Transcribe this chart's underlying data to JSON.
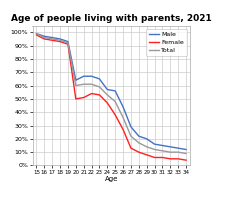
{
  "title": "Age of people living with parents, 2021",
  "xlabel": "Age",
  "ages": [
    15,
    16,
    17,
    18,
    19,
    20,
    21,
    22,
    23,
    24,
    25,
    26,
    27,
    28,
    29,
    30,
    31,
    32,
    33,
    34
  ],
  "male": [
    0.99,
    0.97,
    0.96,
    0.95,
    0.93,
    0.64,
    0.67,
    0.67,
    0.65,
    0.57,
    0.56,
    0.44,
    0.29,
    0.22,
    0.2,
    0.16,
    0.15,
    0.14,
    0.13,
    0.12
  ],
  "female": [
    0.98,
    0.95,
    0.94,
    0.93,
    0.91,
    0.5,
    0.51,
    0.54,
    0.53,
    0.47,
    0.38,
    0.27,
    0.13,
    0.1,
    0.08,
    0.06,
    0.06,
    0.05,
    0.05,
    0.04
  ],
  "total": [
    0.99,
    0.96,
    0.95,
    0.94,
    0.92,
    0.6,
    0.61,
    0.61,
    0.59,
    0.53,
    0.48,
    0.36,
    0.22,
    0.17,
    0.14,
    0.12,
    0.11,
    0.1,
    0.1,
    0.09
  ],
  "male_color": "#4472C4",
  "female_color": "#FF2020",
  "total_color": "#999999",
  "ylim": [
    0,
    1.05
  ],
  "yticks": [
    0,
    0.1,
    0.2,
    0.3,
    0.4,
    0.5,
    0.6,
    0.7,
    0.8,
    0.9,
    1.0
  ],
  "ytick_labels": [
    "0%",
    "10%",
    "20%",
    "30%",
    "40%",
    "50%",
    "60%",
    "70%",
    "80%",
    "90%",
    "100%"
  ],
  "background_color": "#ffffff",
  "grid_color": "#cccccc",
  "linewidth": 1.0
}
